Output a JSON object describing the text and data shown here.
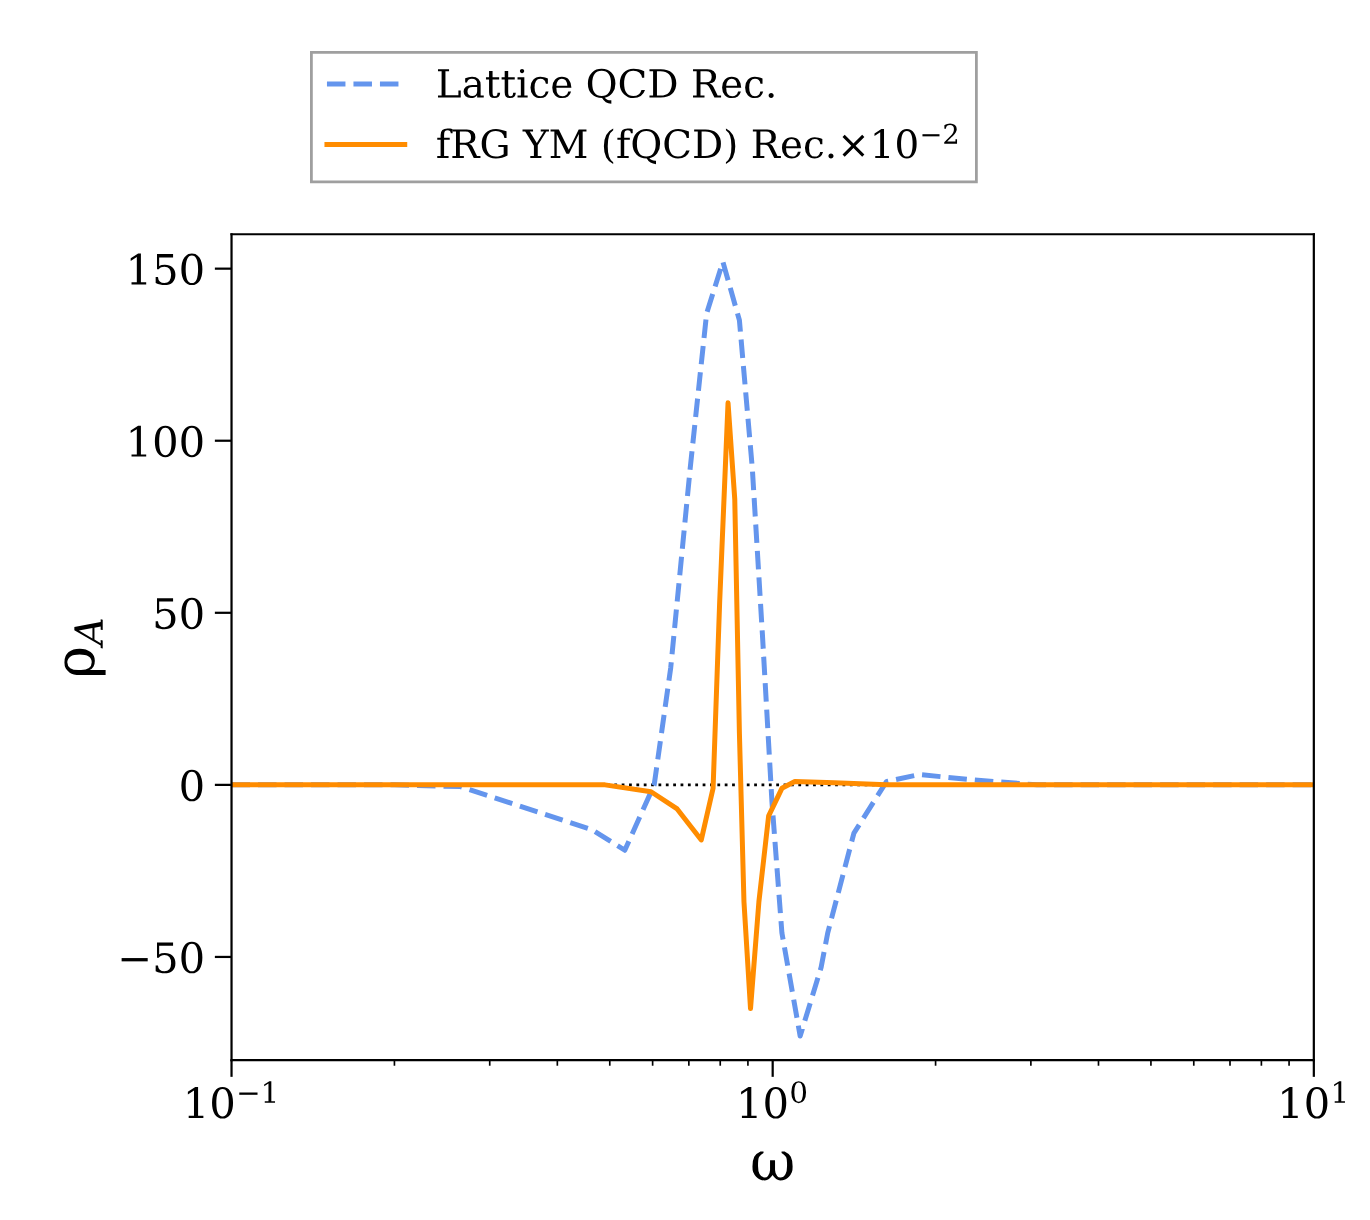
{
  "chart_data": {
    "type": "line",
    "xlabel": "ω",
    "ylabel": "ρ$_{A}$",
    "log": "x",
    "xlim": [
      0.1,
      10
    ],
    "xticks": [
      {
        "value": 0.1,
        "label": "10$^{−1}$"
      },
      {
        "value": 1,
        "label": "10$^{0}$"
      },
      {
        "value": 10,
        "label": "10$^{1}$"
      }
    ],
    "ylim": [
      -80,
      160
    ],
    "yticks": [
      -50,
      0,
      50,
      100,
      150
    ],
    "grid": false,
    "legend": "top",
    "ref_lines": [
      {
        "axis": "y",
        "value": 0,
        "color": "#000000",
        "line_style": "dotted"
      }
    ],
    "series": [
      {
        "name": "Lattice QCD Rec.",
        "color": "#6495ed",
        "line_style": "dashed",
        "x": [
          0.1,
          0.2,
          0.265,
          0.463,
          0.533,
          0.604,
          0.648,
          0.704,
          0.755,
          0.809,
          0.868,
          0.917,
          0.957,
          0.997,
          1.04,
          1.124,
          1.229,
          1.264,
          1.413,
          1.624,
          1.867,
          2.33,
          3.08,
          5,
          10
        ],
        "values": [
          0,
          0,
          -0.5,
          -13,
          -19,
          0,
          34,
          92,
          137,
          152,
          135,
          92,
          44,
          -5,
          -43,
          -73,
          -53,
          -43,
          -14,
          1,
          3,
          1.5,
          0,
          0,
          0
        ]
      },
      {
        "name": "fRG YM (fQCD) Rec.×10$^{−2}$",
        "color": "#ff8c00",
        "line_style": "solid",
        "x": [
          0.1,
          0.3,
          0.49,
          0.596,
          0.666,
          0.738,
          0.776,
          0.798,
          0.827,
          0.851,
          0.868,
          0.885,
          0.91,
          0.943,
          0.983,
          1.04,
          1.099,
          1.3,
          1.62,
          3,
          10
        ],
        "values": [
          0,
          0,
          0,
          -2,
          -7,
          -16,
          -1,
          53,
          111,
          83,
          15,
          -34,
          -65,
          -34,
          -9,
          -1,
          1,
          0.6,
          0,
          0,
          0
        ]
      }
    ]
  }
}
